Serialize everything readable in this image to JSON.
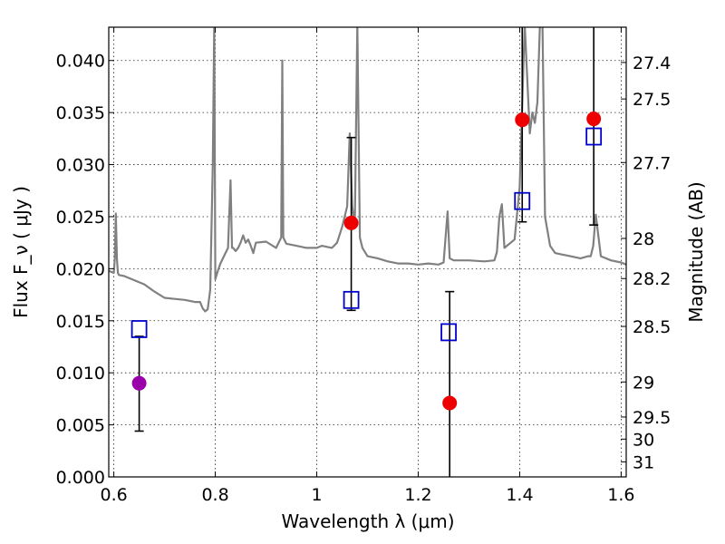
{
  "chart_data": {
    "type": "scatter",
    "title": "",
    "xlabel": "Wavelength  λ (μm)",
    "ylabel": "Flux  F_ν ( μJy )",
    "y2label": "Magnitude (AB)",
    "xlim": [
      0.59,
      1.61
    ],
    "ylim": [
      0.0,
      0.0432
    ],
    "grid": true,
    "x_ticks": [
      0.6,
      0.8,
      1.0,
      1.2,
      1.4,
      1.6
    ],
    "x_tick_labels": [
      "0.6",
      "0.8",
      "1",
      "1.2",
      "1.4",
      "1.6"
    ],
    "y_ticks": [
      0.0,
      0.005,
      0.01,
      0.015,
      0.02,
      0.025,
      0.03,
      0.035,
      0.04
    ],
    "y_tick_labels": [
      "0.000",
      "0.005",
      "0.010",
      "0.015",
      "0.020",
      "0.025",
      "0.030",
      "0.035",
      "0.040"
    ],
    "mag_ticks": [
      27.4,
      27.5,
      27.7,
      28,
      28.2,
      28.5,
      29,
      29.5,
      30,
      31
    ],
    "mag_tick_labels": [
      "27.4",
      "27.5",
      "27.7",
      "28",
      "28.2",
      "28.5",
      "29",
      "29.5",
      "30",
      "31"
    ],
    "series": [
      {
        "type": "line",
        "color": "#808080",
        "x": [
          0.59,
          0.6,
          0.602,
          0.604,
          0.606,
          0.608,
          0.61,
          0.62,
          0.64,
          0.66,
          0.68,
          0.7,
          0.72,
          0.74,
          0.76,
          0.77,
          0.775,
          0.78,
          0.785,
          0.79,
          0.795,
          0.798,
          0.8,
          0.805,
          0.81,
          0.82,
          0.825,
          0.83,
          0.833,
          0.835,
          0.84,
          0.845,
          0.85,
          0.855,
          0.86,
          0.865,
          0.87,
          0.875,
          0.88,
          0.9,
          0.92,
          0.93,
          0.932,
          0.934,
          0.94,
          0.96,
          0.98,
          1.0,
          1.01,
          1.03,
          1.04,
          1.05,
          1.06,
          1.065,
          1.07,
          1.075,
          1.08,
          1.085,
          1.09,
          1.1,
          1.12,
          1.14,
          1.16,
          1.18,
          1.2,
          1.22,
          1.24,
          1.25,
          1.258,
          1.262,
          1.27,
          1.3,
          1.33,
          1.35,
          1.355,
          1.36,
          1.365,
          1.37,
          1.39,
          1.4,
          1.41,
          1.42,
          1.425,
          1.43,
          1.435,
          1.44,
          1.445,
          1.45,
          1.46,
          1.47,
          1.48,
          1.5,
          1.52,
          1.535,
          1.54,
          1.545,
          1.55,
          1.56,
          1.58,
          1.6,
          1.61
        ],
        "y": [
          0.0198,
          0.0196,
          0.021,
          0.0253,
          0.021,
          0.0196,
          0.0194,
          0.0193,
          0.0189,
          0.0185,
          0.0178,
          0.0172,
          0.0171,
          0.017,
          0.0168,
          0.0168,
          0.0162,
          0.0159,
          0.0161,
          0.018,
          0.03,
          0.0435,
          0.019,
          0.0198,
          0.0205,
          0.0215,
          0.022,
          0.0285,
          0.022,
          0.022,
          0.0217,
          0.022,
          0.0225,
          0.0232,
          0.0225,
          0.0228,
          0.0222,
          0.0215,
          0.0225,
          0.0226,
          0.022,
          0.023,
          0.04,
          0.023,
          0.0224,
          0.0222,
          0.022,
          0.022,
          0.0222,
          0.022,
          0.0225,
          0.024,
          0.026,
          0.033,
          0.026,
          0.024,
          0.0435,
          0.023,
          0.022,
          0.0212,
          0.021,
          0.0207,
          0.0205,
          0.0205,
          0.0204,
          0.0205,
          0.0204,
          0.0206,
          0.0255,
          0.021,
          0.0208,
          0.0208,
          0.0207,
          0.0208,
          0.0216,
          0.025,
          0.0262,
          0.022,
          0.0228,
          0.0278,
          0.0435,
          0.033,
          0.035,
          0.034,
          0.036,
          0.0435,
          0.0435,
          0.025,
          0.0222,
          0.0215,
          0.0214,
          0.0212,
          0.021,
          0.0212,
          0.0212,
          0.0222,
          0.0252,
          0.0212,
          0.0208,
          0.0206,
          0.0204
        ]
      },
      {
        "type": "points",
        "marker": "circle",
        "x": [
          0.65,
          1.068,
          1.262,
          1.405,
          1.546
        ],
        "y": [
          0.009,
          0.0244,
          0.0071,
          0.0343,
          0.0344
        ],
        "colors": [
          "#9900aa",
          "#ee0000",
          "#ee0000",
          "#ee0000",
          "#ee0000"
        ],
        "err_low": [
          0.0044,
          0.016,
          0.0,
          0.0245,
          0.0242
        ],
        "err_high": [
          0.0135,
          0.0326,
          0.0178,
          0.0435,
          0.0435
        ]
      },
      {
        "type": "points",
        "marker": "open-square",
        "color": "#0000cc",
        "x": [
          0.65,
          1.068,
          1.26,
          1.405,
          1.546
        ],
        "y": [
          0.0142,
          0.017,
          0.0139,
          0.0265,
          0.0327
        ]
      }
    ]
  }
}
